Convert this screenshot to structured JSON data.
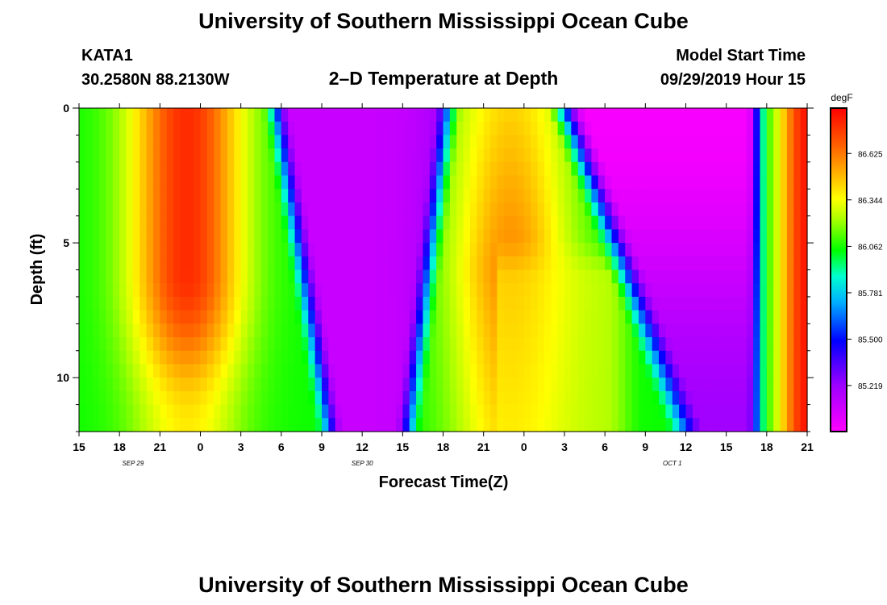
{
  "title": "University of Southern Mississippi Ocean Cube",
  "footer_title": "University of Southern Mississippi Ocean Cube",
  "station": {
    "id": "KATA1",
    "coords": "30.2580N 88.2130W"
  },
  "plot_title": "2–D Temperature at Depth",
  "model_start": {
    "label": "Model Start Time",
    "value": "09/29/2019 Hour 15"
  },
  "chart_data": {
    "type": "heatmap",
    "title": "2–D Temperature at Depth",
    "xlabel": "Forecast Time(Z)",
    "ylabel": "Depth (ft)",
    "x_hours_range": [
      0,
      54
    ],
    "y_depth_range": [
      0,
      12
    ],
    "x_tick_labels": [
      "15",
      "18",
      "21",
      "0",
      "3",
      "6",
      "9",
      "12",
      "15",
      "18",
      "21",
      "0",
      "3",
      "6",
      "9",
      "12",
      "15",
      "18",
      "21"
    ],
    "y_tick_labels": [
      {
        "depth": 0,
        "label": "0"
      },
      {
        "depth": 5,
        "label": "5"
      },
      {
        "depth": 10,
        "label": "10"
      }
    ],
    "date_labels": [
      {
        "hour": 4,
        "label": "SEP 29"
      },
      {
        "hour": 21,
        "label": "SEP 30"
      },
      {
        "hour": 44,
        "label": "OCT 1"
      }
    ],
    "colorbar": {
      "unit": "degF",
      "min": 84.94,
      "max": 86.9,
      "tick_values": [
        86.625,
        86.344,
        86.062,
        85.781,
        85.5,
        85.219
      ],
      "tick_labels": [
        "86.625",
        "86.344",
        "86.062",
        "85.781",
        "85.500",
        "85.219"
      ]
    },
    "description": "Temperature (degF) vs forecast hour (0–54 from 09/29 15Z) and depth (0–12 ft); values read approximately from color.",
    "model": {
      "warm_1": {
        "center_hour": 8,
        "width": 4.2,
        "max_temp": 86.8,
        "max_depth": 8
      },
      "cold_1": {
        "center_hour": 21,
        "surface_half_width": 6.5,
        "bottom_half_width": 3,
        "min_temp": 85.1
      },
      "warm_2": {
        "center_hour": 32,
        "width": 4.5,
        "max_temp": 86.6
      },
      "cold_2": {
        "center_hour": 45,
        "surface_start": 36,
        "bottom_start": 45,
        "end_hour": 50.5,
        "min_temp": 84.96
      },
      "warm_3": {
        "start_hour": 51,
        "max_temp": 86.85
      },
      "background_temp": 86.05
    }
  }
}
